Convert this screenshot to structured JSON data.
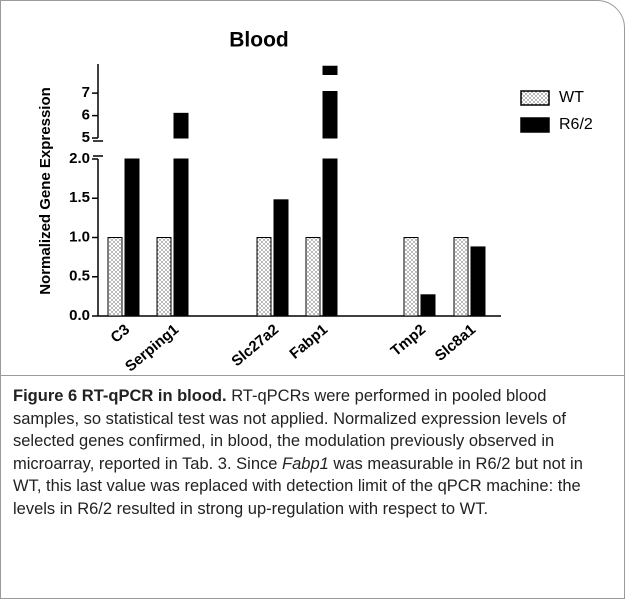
{
  "chart_data": {
    "type": "bar",
    "title": "Blood",
    "ylabel": "Normalized Gene Expression",
    "categories": [
      "C3",
      "Serping1",
      "Slc27a2",
      "Fabp1",
      "Tmp2",
      "Slc8a1"
    ],
    "series": [
      {
        "name": "WT",
        "color": "#ffffff",
        "values": [
          1,
          1,
          1,
          1,
          1,
          1
        ]
      },
      {
        "name": "R6/2",
        "color": "#000000",
        "values": [
          2.0,
          6.1,
          1.48,
          8.2,
          0.27,
          0.88
        ]
      }
    ],
    "ylim": [
      0,
      2
    ],
    "yticks": [
      {
        "value": 0,
        "label": "0.0"
      },
      0.5,
      {
        "value": 1,
        "label": "1.0"
      },
      1.5,
      {
        "value": 2,
        "label": "2.0"
      }
    ],
    "y2lim": [
      5,
      8.3
    ],
    "y2ticks": [
      5,
      6,
      7
    ],
    "legend": "top-right"
  },
  "caption": {
    "label": "Figure 6",
    "title": "RT-qPCR in blood.",
    "text_before": "RT-qPCRs were performed in pooled blood samples, so statistical test was not applied. Normalized expression levels of selected genes confirmed, in blood, the modulation previously observed in microarray, reported in Tab. 3. Since ",
    "gene": "Fabp1",
    "text_after": " was measurable in R6/2 but not in WT, this last value was replaced with detection limit of the qPCR machine: the levels in R6/2 resulted in strong up-regulation with respect to WT."
  }
}
